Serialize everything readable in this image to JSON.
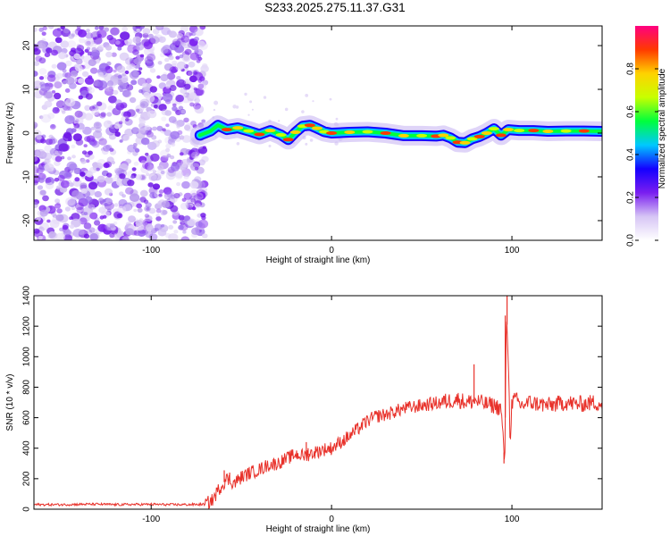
{
  "title": "S233.2025.275.11.37.G31",
  "chart_data": [
    {
      "type": "heatmap",
      "xlabel": "Height of straight line (km)",
      "ylabel": "Frequency (Hz)",
      "xlim": [
        -165,
        150
      ],
      "ylim": [
        -24.5,
        24.5
      ],
      "xticks": [
        -100,
        0,
        100
      ],
      "xtick_labels": [
        "-100",
        "0",
        "100"
      ],
      "yticks": [
        -20,
        -10,
        0,
        10,
        20
      ],
      "ytick_labels": [
        "-20",
        "-10",
        "0",
        "10",
        "20"
      ],
      "noise_region_x": [
        -165,
        -73
      ],
      "signal_track": {
        "x": [
          -73,
          -67,
          -63,
          -58,
          -52,
          -46,
          -40,
          -34,
          -28,
          -24,
          -20,
          -16,
          -12,
          -8,
          -4,
          0,
          10,
          20,
          30,
          40,
          50,
          58,
          62,
          66,
          70,
          74,
          78,
          82,
          86,
          90,
          94,
          98,
          104,
          112,
          120,
          130,
          140,
          150
        ],
        "freq": [
          -0.5,
          0.5,
          1.8,
          0.8,
          1.2,
          0.5,
          -0.3,
          0.6,
          -0.4,
          -1.5,
          0.2,
          1.6,
          1.8,
          1.1,
          0.3,
          0.0,
          0.2,
          0.3,
          0.0,
          -0.6,
          -0.6,
          -0.7,
          -0.5,
          -1.1,
          -2.1,
          -2.2,
          -1.3,
          -0.8,
          0.0,
          1.0,
          -0.5,
          0.8,
          0.6,
          0.6,
          0.4,
          0.5,
          0.5,
          0.4
        ]
      },
      "colorbar": {
        "label": "Normalized spectral amplitude",
        "range": [
          0.0,
          1.0
        ],
        "ticks": [
          0.0,
          0.2,
          0.4,
          0.6,
          0.8
        ],
        "tick_labels": [
          "0.0",
          "0.2",
          "0.4",
          "0.6",
          "0.8"
        ],
        "colors": [
          "#ffffff",
          "#d6c5f5",
          "#7a1ef0",
          "#1400ff",
          "#00c8ff",
          "#00ff3c",
          "#c8ff00",
          "#ffd200",
          "#ff3a00",
          "#ff0080"
        ]
      }
    },
    {
      "type": "line",
      "xlabel": "Height of straight line (km)",
      "ylabel": "SNR (10 * v/v)",
      "xlim": [
        -165,
        150
      ],
      "ylim": [
        0,
        1400
      ],
      "xticks": [
        -100,
        0,
        100
      ],
      "xtick_labels": [
        "-100",
        "0",
        "100"
      ],
      "yticks": [
        0,
        200,
        400,
        600,
        800,
        1000,
        1200,
        1400
      ],
      "ytick_labels": [
        "0",
        "200",
        "400",
        "600",
        "800",
        "1000",
        "1200",
        "1400"
      ],
      "line_color": "#e8312a",
      "series": [
        {
          "name": "SNR",
          "x": [
            -165,
            -150,
            -140,
            -130,
            -120,
            -110,
            -100,
            -90,
            -80,
            -70,
            -66,
            -62,
            -58,
            -54,
            -50,
            -45,
            -40,
            -35,
            -30,
            -25,
            -20,
            -15,
            -10,
            -5,
            0,
            5,
            10,
            15,
            20,
            25,
            30,
            35,
            40,
            45,
            50,
            55,
            60,
            65,
            70,
            75,
            80,
            85,
            90,
            94,
            96,
            97,
            98,
            99,
            100,
            102,
            105,
            110,
            115,
            120,
            125,
            130,
            135,
            140,
            145,
            150
          ],
          "values": [
            30,
            30,
            32,
            33,
            30,
            31,
            32,
            30,
            30,
            32,
            60,
            140,
            200,
            170,
            210,
            240,
            260,
            290,
            300,
            330,
            360,
            350,
            370,
            390,
            400,
            440,
            480,
            530,
            580,
            610,
            620,
            640,
            660,
            670,
            680,
            690,
            700,
            710,
            720,
            700,
            710,
            690,
            680,
            660,
            300,
            1300,
            1000,
            450,
            700,
            720,
            680,
            700,
            690,
            680,
            690,
            700,
            690,
            690,
            700,
            690
          ],
          "spikes": [
            {
              "x": -59.5,
              "value": 255
            },
            {
              "x": -56.5,
              "value": 240
            },
            {
              "x": -14,
              "value": 440
            },
            {
              "x": -13,
              "value": 400
            },
            {
              "x": 79,
              "value": 950
            },
            {
              "x": 96.3,
              "value": 1270
            },
            {
              "x": 97.3,
              "value": 1400
            },
            {
              "x": 95.6,
              "value": 300
            }
          ]
        }
      ]
    }
  ]
}
